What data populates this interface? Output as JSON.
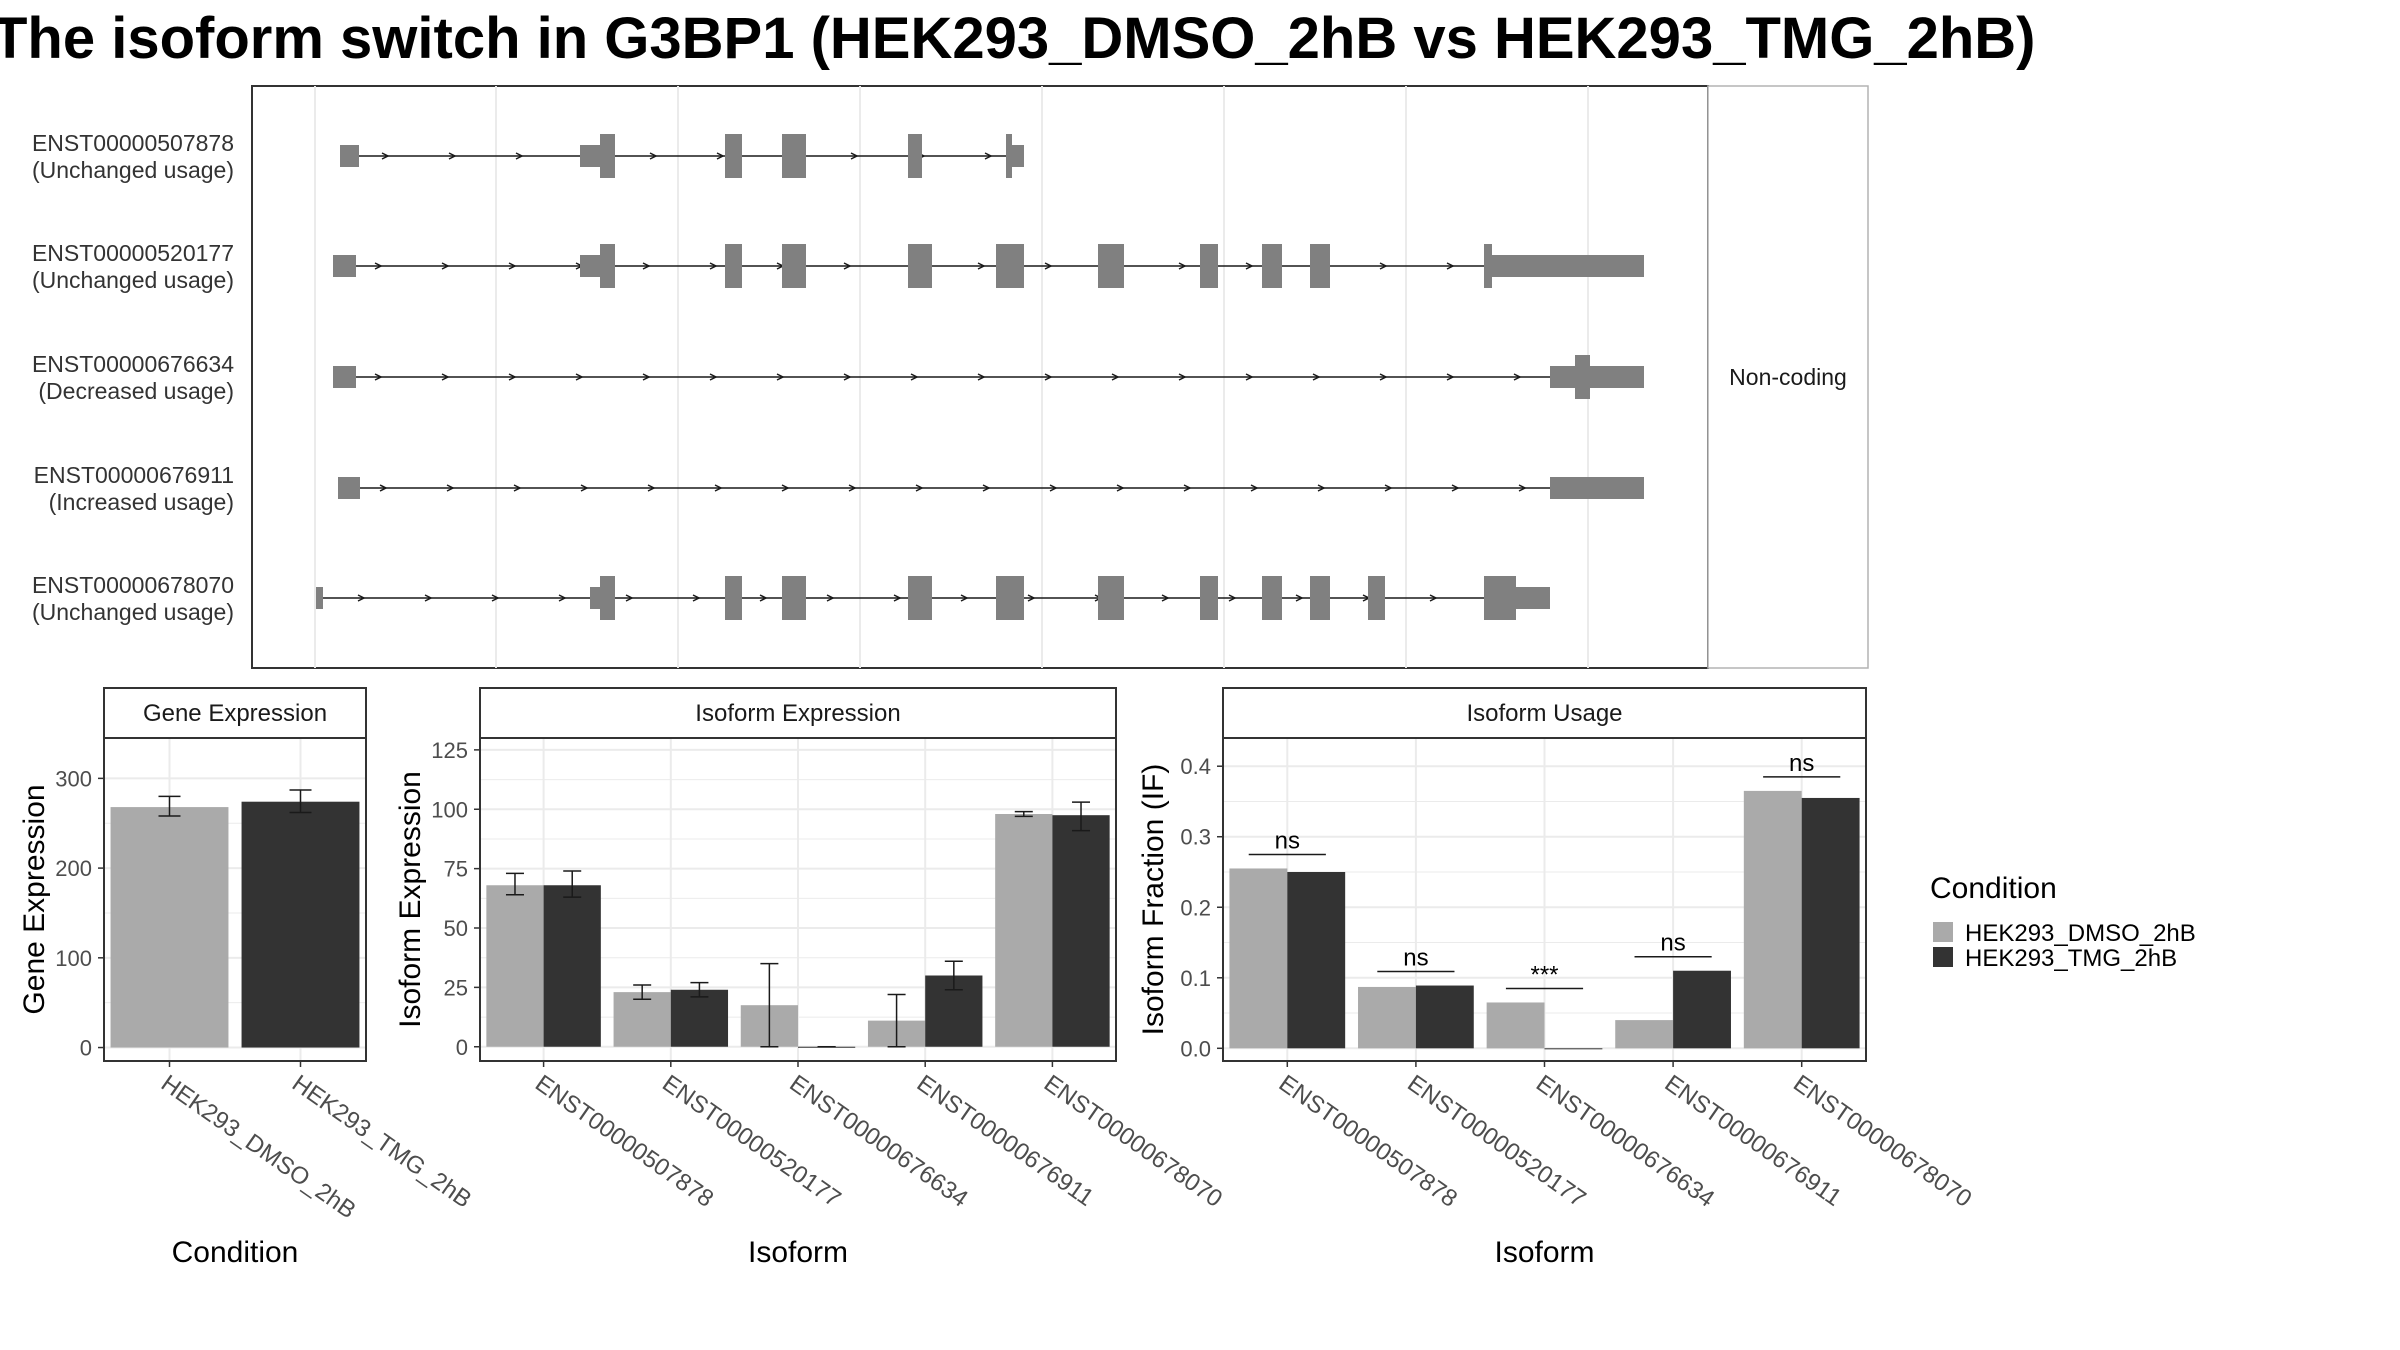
{
  "title": "The isoform switch in G3BP1 (HEK293_DMSO_2hB vs HEK293_TMG_2hB)",
  "colors": {
    "dmso": "#aaaaaa",
    "tmg": "#333333",
    "exon": "#808080",
    "grid": "#ebebeb",
    "strip_bg": "#ffffff"
  },
  "structure": {
    "side_strip_label": "Non-coding",
    "transcripts": [
      {
        "id": "ENST00000507878",
        "usage": "(Unchanged usage)"
      },
      {
        "id": "ENST00000520177",
        "usage": "(Unchanged usage)"
      },
      {
        "id": "ENST00000676634",
        "usage": "(Decreased usage)"
      },
      {
        "id": "ENST00000676911",
        "usage": "(Increased usage)"
      },
      {
        "id": "ENST00000678070",
        "usage": "(Unchanged usage)"
      }
    ]
  },
  "chart_data": [
    {
      "type": "bar",
      "panel": "Gene Expression",
      "categories": [
        "HEK293_DMSO_2hB",
        "HEK293_TMG_2hB"
      ],
      "values": [
        268,
        274
      ],
      "error": [
        [
          258,
          280
        ],
        [
          262,
          287
        ]
      ],
      "xlabel": "Condition",
      "ylabel": "Gene Expression",
      "ylim": [
        -15,
        345
      ],
      "yticks": [
        0,
        100,
        200,
        300
      ],
      "grid": true
    },
    {
      "type": "bar",
      "panel": "Isoform Expression",
      "categories": [
        "ENST00000507878",
        "ENST00000520177",
        "ENST00000676634",
        "ENST00000676911",
        "ENST00000678070"
      ],
      "series": [
        {
          "name": "HEK293_DMSO_2hB",
          "values": [
            68,
            23,
            17.5,
            11,
            98
          ],
          "error": [
            [
              64,
              73
            ],
            [
              20,
              26
            ],
            [
              0,
              35
            ],
            [
              0,
              22
            ],
            [
              97,
              99
            ]
          ]
        },
        {
          "name": "HEK293_TMG_2hB",
          "values": [
            68,
            24,
            0,
            30,
            97.5
          ],
          "error": [
            [
              63,
              74
            ],
            [
              21,
              27
            ],
            [
              0,
              0
            ],
            [
              24,
              36
            ],
            [
              91,
              103
            ]
          ]
        }
      ],
      "xlabel": "Isoform",
      "ylabel": "Isoform Expression",
      "ylim": [
        -6,
        130
      ],
      "yticks": [
        0,
        25,
        50,
        75,
        100,
        125
      ],
      "grid": true
    },
    {
      "type": "bar",
      "panel": "Isoform Usage",
      "categories": [
        "ENST00000507878",
        "ENST00000520177",
        "ENST00000676634",
        "ENST00000676911",
        "ENST00000678070"
      ],
      "series": [
        {
          "name": "HEK293_DMSO_2hB",
          "values": [
            0.255,
            0.087,
            0.065,
            0.04,
            0.365
          ]
        },
        {
          "name": "HEK293_TMG_2hB",
          "values": [
            0.25,
            0.089,
            0.0,
            0.11,
            0.355
          ]
        }
      ],
      "annotations": [
        "ns",
        "ns",
        "***",
        "ns",
        "ns"
      ],
      "xlabel": "Isoform",
      "ylabel": "Isoform Fraction (IF)",
      "ylim": [
        -0.018,
        0.44
      ],
      "yticks": [
        0.0,
        0.1,
        0.2,
        0.3,
        0.4
      ],
      "ytick_labels": [
        "0.0",
        "0.1",
        "0.2",
        "0.3",
        "0.4"
      ],
      "grid": true
    }
  ],
  "legend": {
    "title": "Condition",
    "items": [
      "HEK293_DMSO_2hB",
      "HEK293_TMG_2hB"
    ],
    "placement": "right"
  }
}
